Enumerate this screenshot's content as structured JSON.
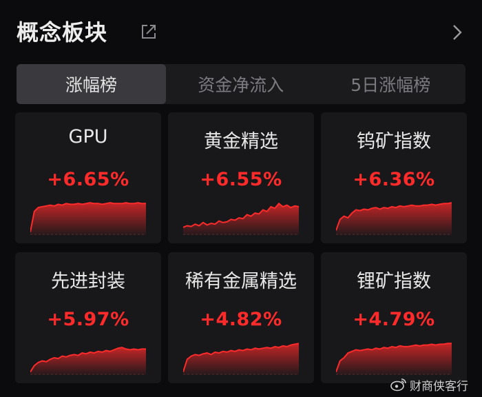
{
  "header": {
    "title": "概念板块",
    "share_icon": "share-icon",
    "more_icon": "chevron-right-icon"
  },
  "tabs": [
    {
      "label": "涨幅榜",
      "active": true
    },
    {
      "label": "资金净流入",
      "active": false
    },
    {
      "label": "5日涨幅榜",
      "active": false
    }
  ],
  "colors": {
    "accent_up": "#ff2a2a",
    "background": "#0b0b0d",
    "card": "#18181b"
  },
  "cards": [
    {
      "name": "GPU",
      "change": "+6.65%",
      "trend": [
        2,
        28,
        33,
        34,
        35,
        36,
        35,
        37,
        36,
        38,
        37,
        37,
        38,
        37,
        38,
        39,
        38,
        38,
        37,
        38,
        39,
        38,
        38,
        38,
        39,
        38,
        38,
        39,
        38,
        38
      ]
    },
    {
      "name": "黄金精选",
      "change": "+6.55%",
      "trend": [
        8,
        10,
        9,
        12,
        10,
        14,
        11,
        13,
        12,
        16,
        14,
        15,
        18,
        17,
        20,
        19,
        24,
        22,
        26,
        25,
        30,
        28,
        34,
        32,
        38,
        34,
        36,
        33,
        35,
        34
      ]
    },
    {
      "name": "钨矿指数",
      "change": "+6.36%",
      "trend": [
        4,
        18,
        22,
        20,
        26,
        30,
        29,
        31,
        30,
        32,
        33,
        31,
        33,
        32,
        34,
        33,
        35,
        34,
        35,
        36,
        35,
        35,
        36,
        36,
        37,
        36,
        37,
        38,
        38,
        39
      ]
    },
    {
      "name": "先进封装",
      "change": "+5.97%",
      "trend": [
        2,
        10,
        14,
        16,
        15,
        18,
        20,
        19,
        22,
        21,
        23,
        24,
        23,
        26,
        25,
        27,
        26,
        28,
        27,
        29,
        28,
        30,
        32,
        33,
        31,
        30,
        31,
        30,
        31,
        31
      ]
    },
    {
      "name": "稀有金属精选",
      "change": "+4.82%",
      "trend": [
        2,
        18,
        22,
        24,
        23,
        25,
        26,
        24,
        27,
        26,
        28,
        27,
        29,
        28,
        30,
        29,
        31,
        30,
        32,
        31,
        32,
        33,
        32,
        34,
        33,
        35,
        34,
        36,
        37,
        38
      ]
    },
    {
      "name": "锂矿指数",
      "change": "+4.79%",
      "trend": [
        2,
        16,
        20,
        26,
        28,
        30,
        29,
        30,
        31,
        30,
        32,
        31,
        33,
        32,
        34,
        33,
        35,
        34,
        34,
        35,
        36,
        35,
        36,
        36,
        37,
        36,
        37,
        37,
        38,
        38
      ]
    }
  ],
  "watermark": {
    "icon": "weibo-icon",
    "text": "财商侠客行"
  }
}
